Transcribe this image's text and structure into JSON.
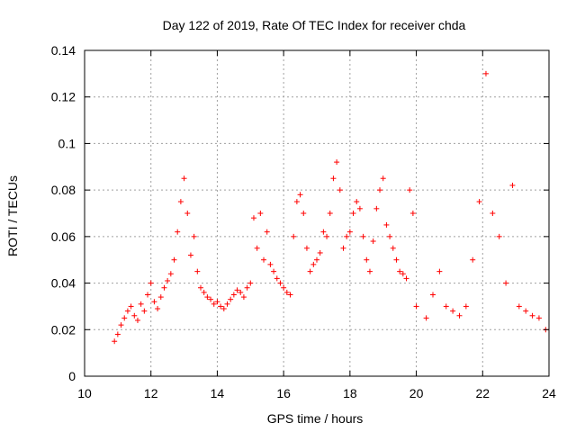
{
  "chart_data": {
    "type": "scatter",
    "title": "Day 122 of 2019, Rate Of TEC Index for receiver chda",
    "xlabel": "GPS time / hours",
    "ylabel": "ROTI / TECUs",
    "xlim": [
      10,
      24
    ],
    "ylim": [
      0,
      0.14
    ],
    "xticks": [
      "10",
      "12",
      "14",
      "16",
      "18",
      "20",
      "22",
      "24"
    ],
    "yticks": [
      "0",
      "0.02",
      "0.04",
      "0.06",
      "0.08",
      "0.1",
      "0.12",
      "0.14"
    ],
    "grid": true,
    "marker": "plus",
    "color": "#ff0000",
    "series": [
      {
        "x": [
          10.9,
          11.0,
          11.1,
          11.2,
          11.3,
          11.4,
          11.5,
          11.6,
          11.7,
          11.8,
          11.9,
          12.0,
          12.1,
          12.2,
          12.3,
          12.4,
          12.5,
          12.6,
          12.7,
          12.8,
          12.9,
          13.0,
          13.1,
          13.2,
          13.3,
          13.4,
          13.5,
          13.6,
          13.7,
          13.8,
          13.9,
          14.0,
          14.1,
          14.2,
          14.3,
          14.4,
          14.5,
          14.6,
          14.7,
          14.8,
          14.9,
          15.0,
          15.1,
          15.2,
          15.3,
          15.4,
          15.5,
          15.6,
          15.7,
          15.8,
          15.9,
          16.0,
          16.1,
          16.2,
          16.3,
          16.4,
          16.5,
          16.6,
          16.7,
          16.8,
          16.9,
          17.0,
          17.1,
          17.2,
          17.3,
          17.4,
          17.5,
          17.6,
          17.7,
          17.8,
          17.9,
          18.0,
          18.1,
          18.2,
          18.3,
          18.4,
          18.5,
          18.6,
          18.7,
          18.8,
          18.9,
          19.0,
          19.1,
          19.2,
          19.3,
          19.4,
          19.5,
          19.6,
          19.7,
          19.8,
          19.9,
          20.0,
          20.3,
          20.5,
          20.7,
          20.9,
          21.1,
          21.3,
          21.5,
          21.7,
          21.9,
          22.1,
          22.3,
          22.5,
          22.7,
          22.9,
          23.1,
          23.3,
          23.5,
          23.7,
          23.9
        ],
        "y": [
          0.015,
          0.018,
          0.022,
          0.025,
          0.028,
          0.03,
          0.026,
          0.024,
          0.031,
          0.028,
          0.035,
          0.04,
          0.032,
          0.029,
          0.034,
          0.038,
          0.041,
          0.044,
          0.05,
          0.062,
          0.075,
          0.085,
          0.07,
          0.052,
          0.06,
          0.045,
          0.038,
          0.036,
          0.034,
          0.033,
          0.031,
          0.032,
          0.03,
          0.029,
          0.031,
          0.033,
          0.035,
          0.037,
          0.036,
          0.034,
          0.038,
          0.04,
          0.068,
          0.055,
          0.07,
          0.05,
          0.062,
          0.048,
          0.045,
          0.042,
          0.04,
          0.038,
          0.036,
          0.035,
          0.06,
          0.075,
          0.078,
          0.07,
          0.055,
          0.045,
          0.048,
          0.05,
          0.053,
          0.062,
          0.06,
          0.07,
          0.085,
          0.092,
          0.08,
          0.055,
          0.06,
          0.062,
          0.07,
          0.075,
          0.072,
          0.06,
          0.05,
          0.045,
          0.058,
          0.072,
          0.08,
          0.085,
          0.065,
          0.06,
          0.055,
          0.05,
          0.045,
          0.044,
          0.042,
          0.08,
          0.07,
          0.03,
          0.025,
          0.035,
          0.045,
          0.03,
          0.028,
          0.026,
          0.03,
          0.05,
          0.075,
          0.13,
          0.07,
          0.06,
          0.04,
          0.082,
          0.03,
          0.028,
          0.026,
          0.025,
          0.02
        ]
      }
    ]
  }
}
